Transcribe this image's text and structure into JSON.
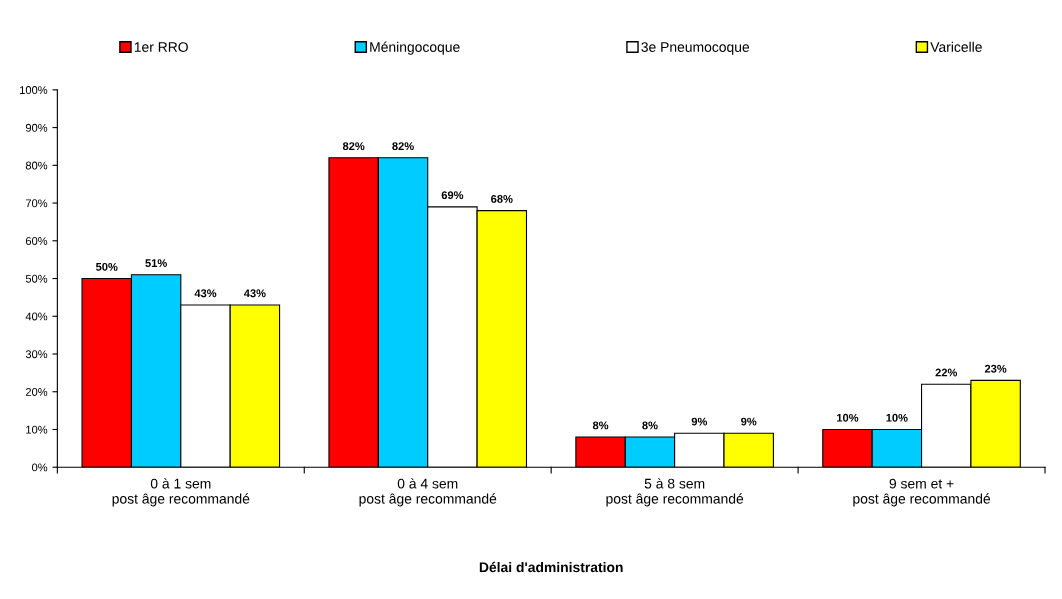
{
  "chart_data": {
    "type": "bar",
    "xlabel": "Délai d'administration",
    "categories": [
      "0 à 1 sem\npost âge recommandé",
      "0 à 4 sem\npost âge recommandé",
      "5 à 8 sem\npost âge recommandé",
      "9 sem et +\npost âge recommandé"
    ],
    "series": [
      {
        "name": "1er RRO",
        "color": "#ff0000",
        "values": [
          50,
          82,
          8,
          10
        ],
        "value_labels": [
          "50%",
          "82%",
          "8%",
          "10%"
        ]
      },
      {
        "name": "Méningocoque",
        "color": "#00ccff",
        "values": [
          51,
          82,
          8,
          10
        ],
        "value_labels": [
          "51%",
          "82%",
          "8%",
          "10%"
        ]
      },
      {
        "name": "3e Pneumocoque",
        "color": "#ffffff",
        "values": [
          43,
          69,
          9,
          22
        ],
        "value_labels": [
          "43%",
          "69%",
          "9%",
          "22%"
        ]
      },
      {
        "name": "Varicelle",
        "color": "#ffff00",
        "values": [
          43,
          68,
          9,
          23
        ],
        "value_labels": [
          "43%",
          "68%",
          "9%",
          "23%"
        ]
      }
    ],
    "ylim": [
      0,
      100
    ],
    "yticks": [
      {
        "value": 0,
        "label": "0%"
      },
      {
        "value": 10,
        "label": "10%"
      },
      {
        "value": 20,
        "label": "20%"
      },
      {
        "value": 30,
        "label": "30%"
      },
      {
        "value": 40,
        "label": "40%"
      },
      {
        "value": 50,
        "label": "50%"
      },
      {
        "value": 60,
        "label": "60%"
      },
      {
        "value": 70,
        "label": "70%"
      },
      {
        "value": 80,
        "label": "80%"
      },
      {
        "value": 90,
        "label": "90%"
      },
      {
        "value": 100,
        "label": "100%"
      }
    ],
    "grid": false,
    "legend": "top"
  }
}
